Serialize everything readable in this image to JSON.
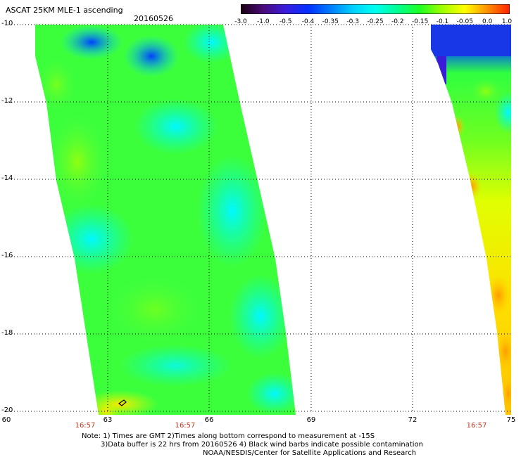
{
  "header": {
    "title": "ASCAT 25KM MLE-1 ascending",
    "date": "20160526"
  },
  "colorbar": {
    "labels": [
      "-3.0",
      "-1.0",
      "-0.5",
      "-0.4",
      "-0.35",
      "-0.3",
      "-0.25",
      "-0.2",
      "-0.15",
      "-0.1",
      "-0.05",
      "0.0",
      "1.0"
    ],
    "colors": [
      "#1a0010",
      "#4a0b7a",
      "#3a1cdc",
      "#0030ff",
      "#007cff",
      "#00d0ff",
      "#00fff0",
      "#00ff90",
      "#20ff20",
      "#a0ff00",
      "#ffff00",
      "#ff9000",
      "#ff2000"
    ]
  },
  "axes": {
    "y_labels": [
      "-10",
      "-12",
      "-14",
      "-16",
      "-18",
      "-20"
    ],
    "x_labels": [
      "60",
      "63",
      "66",
      "69",
      "72",
      "75"
    ],
    "time_labels": [
      "16:57",
      "16:57",
      "16:57"
    ]
  },
  "notes": {
    "line1": "Note: 1) Times are GMT 2)Times along bottom correspond to measurement at -15S",
    "line2": "3)Data buffer is 22 hrs from 20160526 4) Black wind barbs indicate possible contamination",
    "line3": "NOAA/NESDIS/Center for Satellite Applications and Research"
  }
}
